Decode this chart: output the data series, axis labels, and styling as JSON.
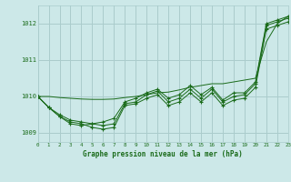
{
  "title": "Graphe pression niveau de la mer (hPa)",
  "background_color": "#cce8e8",
  "grid_color": "#aacccc",
  "line_color": "#1a6b1a",
  "xlim": [
    0,
    23
  ],
  "ylim": [
    1008.75,
    1012.5
  ],
  "yticks": [
    1009,
    1010,
    1011,
    1012
  ],
  "xticks": [
    0,
    1,
    2,
    3,
    4,
    5,
    6,
    7,
    8,
    9,
    10,
    11,
    12,
    13,
    14,
    15,
    16,
    17,
    18,
    19,
    20,
    21,
    22,
    23
  ],
  "smooth_x": [
    0,
    1,
    2,
    3,
    4,
    5,
    6,
    7,
    8,
    9,
    10,
    11,
    12,
    13,
    14,
    15,
    16,
    17,
    18,
    19,
    20,
    21,
    22,
    23
  ],
  "smooth_y": [
    1010.0,
    1010.0,
    1009.97,
    1009.95,
    1009.93,
    1009.92,
    1009.92,
    1009.93,
    1009.97,
    1010.0,
    1010.05,
    1010.1,
    1010.12,
    1010.18,
    1010.25,
    1010.3,
    1010.35,
    1010.35,
    1010.4,
    1010.45,
    1010.5,
    1011.5,
    1012.0,
    1012.2
  ],
  "series1_x": [
    0,
    1,
    2,
    3,
    4,
    5,
    6,
    7,
    8,
    9,
    10,
    11,
    12,
    13,
    14,
    15,
    16,
    17,
    18,
    19,
    20,
    21,
    22,
    23
  ],
  "series1_y": [
    1010.0,
    1009.7,
    1009.45,
    1009.25,
    1009.2,
    1009.25,
    1009.3,
    1009.4,
    1009.85,
    1009.95,
    1010.1,
    1010.2,
    1009.95,
    1010.05,
    1010.3,
    1010.05,
    1010.25,
    1009.9,
    1010.1,
    1010.1,
    1010.4,
    1012.0,
    1012.1,
    1012.2
  ],
  "series2_x": [
    0,
    1,
    2,
    3,
    4,
    5,
    6,
    7,
    8,
    9,
    10,
    11,
    12,
    13,
    14,
    15,
    16,
    17,
    18,
    19,
    20,
    21,
    22,
    23
  ],
  "series2_y": [
    1010.0,
    1009.7,
    1009.5,
    1009.35,
    1009.3,
    1009.25,
    1009.2,
    1009.25,
    1009.8,
    1009.85,
    1010.05,
    1010.15,
    1009.85,
    1009.95,
    1010.2,
    1009.95,
    1010.2,
    1009.85,
    1010.0,
    1010.05,
    1010.35,
    1011.95,
    1012.05,
    1012.15
  ],
  "series3_x": [
    0,
    1,
    2,
    3,
    4,
    5,
    6,
    7,
    8,
    9,
    10,
    11,
    12,
    13,
    14,
    15,
    16,
    17,
    18,
    19,
    20,
    21,
    22,
    23
  ],
  "series3_y": [
    1010.0,
    1009.7,
    1009.45,
    1009.3,
    1009.25,
    1009.15,
    1009.1,
    1009.15,
    1009.75,
    1009.8,
    1009.95,
    1010.05,
    1009.75,
    1009.85,
    1010.1,
    1009.85,
    1010.1,
    1009.75,
    1009.9,
    1009.95,
    1010.25,
    1011.85,
    1011.95,
    1012.05
  ]
}
